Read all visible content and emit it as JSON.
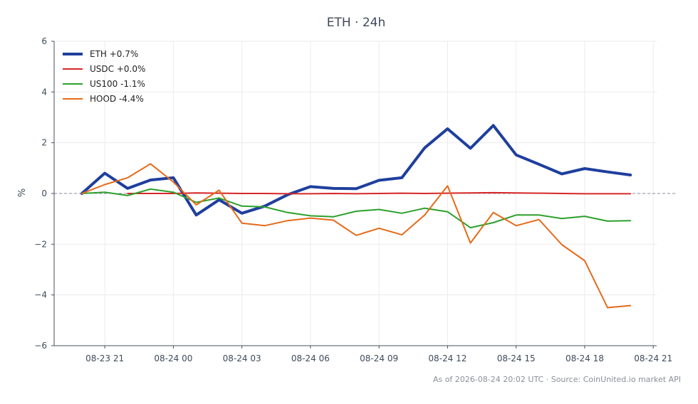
{
  "chart_data": {
    "type": "line",
    "title": "ETH · 24h",
    "xlabel": "",
    "ylabel": "%",
    "ylim": [
      -6,
      6
    ],
    "yticks": [
      6,
      4,
      2,
      0,
      -2,
      -4,
      -6
    ],
    "yticklabels": [
      "6",
      "4",
      "2",
      "0",
      "−2",
      "−4",
      "−6"
    ],
    "xlim": [
      "2026-08-23 18:47",
      "2026-08-24 21:09"
    ],
    "xticks": [
      "2026-08-23 21:00",
      "2026-08-24 00:00",
      "2026-08-24 03:00",
      "2026-08-24 06:00",
      "2026-08-24 09:00",
      "2026-08-24 12:00",
      "2026-08-24 15:00",
      "2026-08-24 18:00",
      "2026-08-24 21:00"
    ],
    "xticklabels": [
      "08-23 21",
      "08-24 00",
      "08-24 03",
      "08-24 06",
      "08-24 09",
      "08-24 12",
      "08-24 15",
      "08-24 18",
      "08-24 21"
    ],
    "x": [
      "2026-08-23 20:00",
      "2026-08-23 21:00",
      "2026-08-23 22:00",
      "2026-08-23 23:00",
      "2026-08-24 00:00",
      "2026-08-24 01:00",
      "2026-08-24 02:00",
      "2026-08-24 03:00",
      "2026-08-24 04:00",
      "2026-08-24 05:00",
      "2026-08-24 06:00",
      "2026-08-24 07:00",
      "2026-08-24 08:00",
      "2026-08-24 09:00",
      "2026-08-24 10:00",
      "2026-08-24 11:00",
      "2026-08-24 12:00",
      "2026-08-24 13:00",
      "2026-08-24 14:00",
      "2026-08-24 15:00",
      "2026-08-24 16:00",
      "2026-08-24 17:00",
      "2026-08-24 18:00",
      "2026-08-24 19:00",
      "2026-08-24 20:00"
    ],
    "series": [
      {
        "name": "ETH +0.7%",
        "color": "#1f3f9e",
        "width": 4,
        "values": [
          0.0,
          0.8,
          0.2,
          0.53,
          0.62,
          -0.85,
          -0.25,
          -0.78,
          -0.5,
          -0.05,
          0.27,
          0.2,
          0.19,
          0.52,
          0.62,
          1.8,
          2.55,
          1.78,
          2.68,
          1.52,
          1.15,
          0.77,
          0.98,
          0.85,
          0.73
        ]
      },
      {
        "name": "USDC +0.0%",
        "color": "#d62728",
        "width": 2,
        "values": [
          null,
          null,
          0.0,
          0.0,
          0.0,
          0.02,
          0.01,
          0.0,
          0.0,
          -0.01,
          -0.01,
          0.0,
          -0.01,
          0.0,
          0.01,
          0.0,
          0.01,
          0.02,
          0.03,
          0.02,
          0.01,
          0.0,
          -0.01,
          -0.01,
          -0.01
        ]
      },
      {
        "name": "US100 -1.1%",
        "color": "#2ca02c",
        "width": 2,
        "values": [
          0.0,
          0.05,
          -0.08,
          0.17,
          0.05,
          -0.35,
          -0.18,
          -0.5,
          -0.53,
          -0.75,
          -0.88,
          -0.92,
          -0.7,
          -0.63,
          -0.78,
          -0.58,
          -0.72,
          -1.35,
          -1.15,
          -0.85,
          -0.85,
          -0.99,
          -0.9,
          -1.09,
          -1.07
        ]
      },
      {
        "name": "HOOD -4.4%",
        "color": "#e56a19",
        "width": 2,
        "values": [
          0.0,
          0.35,
          0.62,
          1.17,
          0.45,
          -0.45,
          0.13,
          -1.17,
          -1.27,
          -1.07,
          -0.97,
          -1.05,
          -1.65,
          -1.37,
          -1.63,
          -0.85,
          0.3,
          -1.95,
          -0.75,
          -1.27,
          -1.03,
          -2.02,
          -2.65,
          -4.5,
          -4.42
        ]
      }
    ],
    "legend_position": "top-left",
    "grid": true,
    "zero_line": {
      "y": 0,
      "style": "dashed",
      "color": "#8a8aaa"
    },
    "footer": "As of 2026-08-24 20:02 UTC · Source: CoinUnited.io market API"
  }
}
